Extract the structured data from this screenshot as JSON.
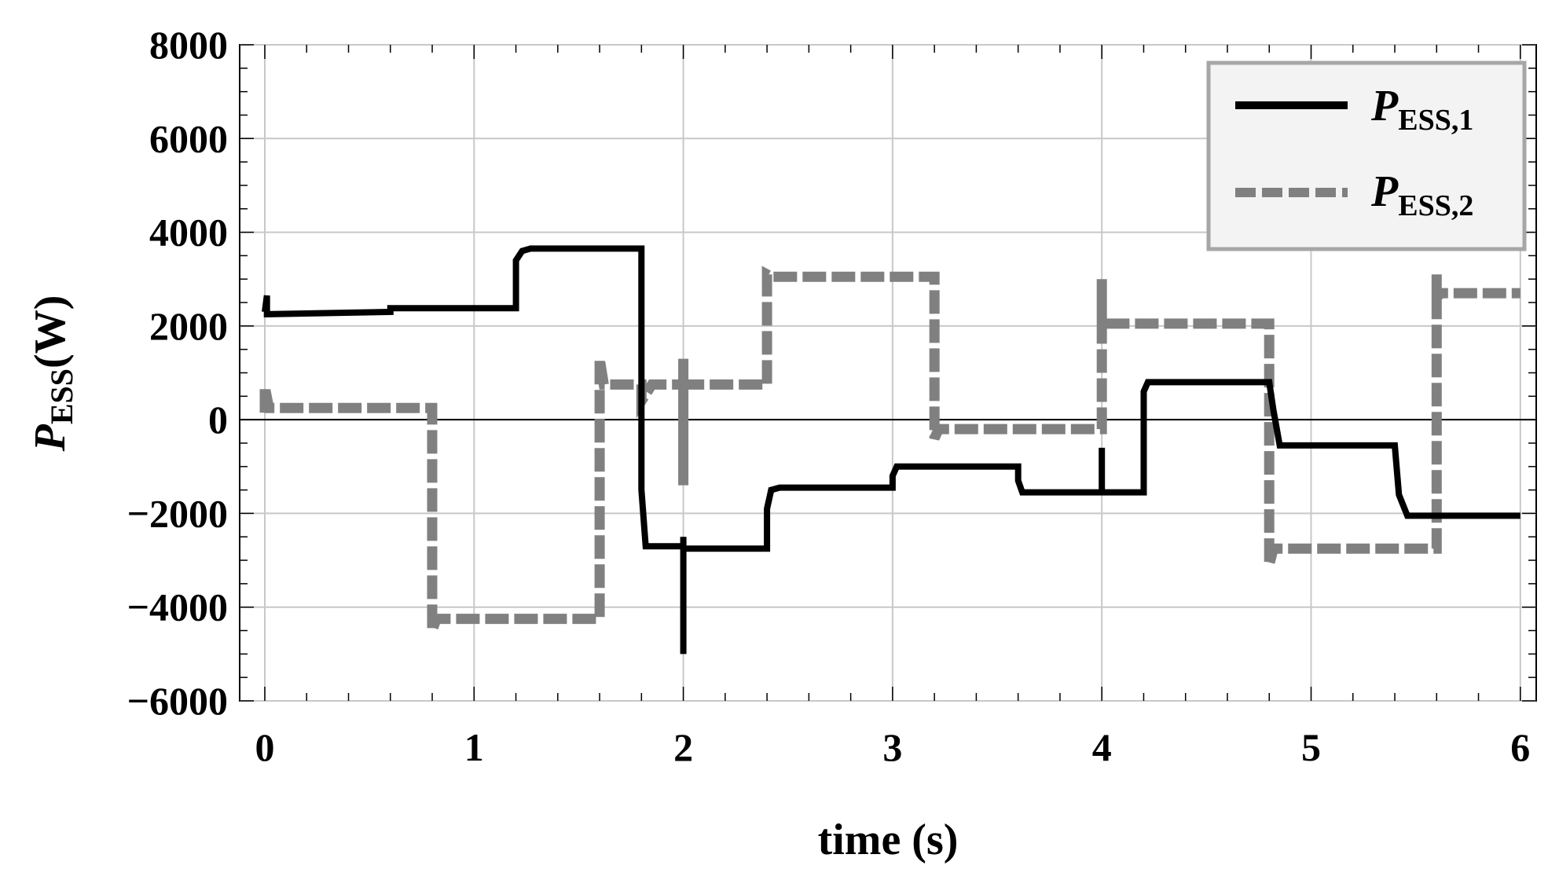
{
  "chart_data": {
    "type": "line",
    "title": "",
    "xlabel": "time (s)",
    "ylabel": {
      "main": "P",
      "sub": "ESS",
      "unit": "(W)"
    },
    "xlim": [
      0,
      6.12
    ],
    "ylim": [
      -6000,
      8000
    ],
    "x_ticks": [
      0,
      1,
      2,
      3,
      4,
      5,
      6
    ],
    "y_ticks": [
      -6000,
      -4000,
      -2000,
      0,
      2000,
      4000,
      6000,
      8000
    ],
    "x_tick_labels": [
      "0",
      "1",
      "2",
      "3",
      "4",
      "5",
      "6"
    ],
    "y_tick_labels": [
      "−6000",
      "−4000",
      "−2000",
      "0",
      "2000",
      "4000",
      "6000",
      "8000"
    ],
    "grid": true,
    "zero_line": true,
    "legend_position": "top-right",
    "series": [
      {
        "label_main": "P",
        "label_sub": "ESS,1",
        "color": "#000000",
        "style": "solid",
        "x": [
          0,
          0.01,
          0.01,
          0.6,
          0.6,
          1.2,
          1.2,
          1.23,
          1.27,
          1.8,
          1.8,
          1.82,
          1.85,
          2.0,
          2.0,
          2.0,
          2.0,
          2.4,
          2.4,
          2.42,
          2.46,
          3.0,
          3.0,
          3.02,
          3.05,
          3.6,
          3.6,
          3.62,
          3.66,
          4.0,
          4.0,
          4.0,
          4.2,
          4.2,
          4.22,
          4.26,
          4.8,
          4.8,
          4.82,
          4.85,
          5.4,
          5.4,
          5.42,
          5.46,
          6.0
        ],
        "y": [
          2300,
          2650,
          2250,
          2300,
          2380,
          2380,
          3400,
          3600,
          3650,
          3650,
          -1500,
          -2700,
          -2700,
          -2700,
          -5000,
          -2500,
          -2750,
          -2750,
          -1900,
          -1500,
          -1450,
          -1450,
          -1200,
          -1000,
          -1000,
          -1000,
          -1300,
          -1550,
          -1550,
          -1550,
          -600,
          -1550,
          -1550,
          600,
          800,
          800,
          800,
          800,
          200,
          -550,
          -550,
          -550,
          -1600,
          -2050,
          -2050
        ]
      },
      {
        "label_main": "P",
        "label_sub": "ESS,2",
        "color": "#808080",
        "style": "dashed",
        "x": [
          0,
          0.0,
          0.02,
          0.8,
          0.8,
          0.8,
          0.82,
          1.6,
          1.6,
          1.62,
          1.8,
          1.8,
          1.85,
          2.0,
          2.0,
          2.0,
          2.0,
          2.4,
          2.4,
          2.42,
          3.2,
          3.2,
          3.22,
          4.0,
          4.0,
          4.0,
          4.02,
          4.8,
          4.8,
          4.8,
          4.82,
          5.6,
          5.6,
          5.6,
          5.62,
          6.0
        ],
        "y": [
          150,
          700,
          250,
          250,
          -4300,
          -4500,
          -4250,
          -4250,
          1300,
          750,
          750,
          400,
          750,
          750,
          1300,
          -1400,
          750,
          750,
          3100,
          3050,
          3050,
          -400,
          -200,
          -200,
          3000,
          2000,
          2050,
          2050,
          1900,
          -3100,
          -2750,
          -2750,
          3100,
          2600,
          2700,
          2700
        ]
      }
    ]
  }
}
